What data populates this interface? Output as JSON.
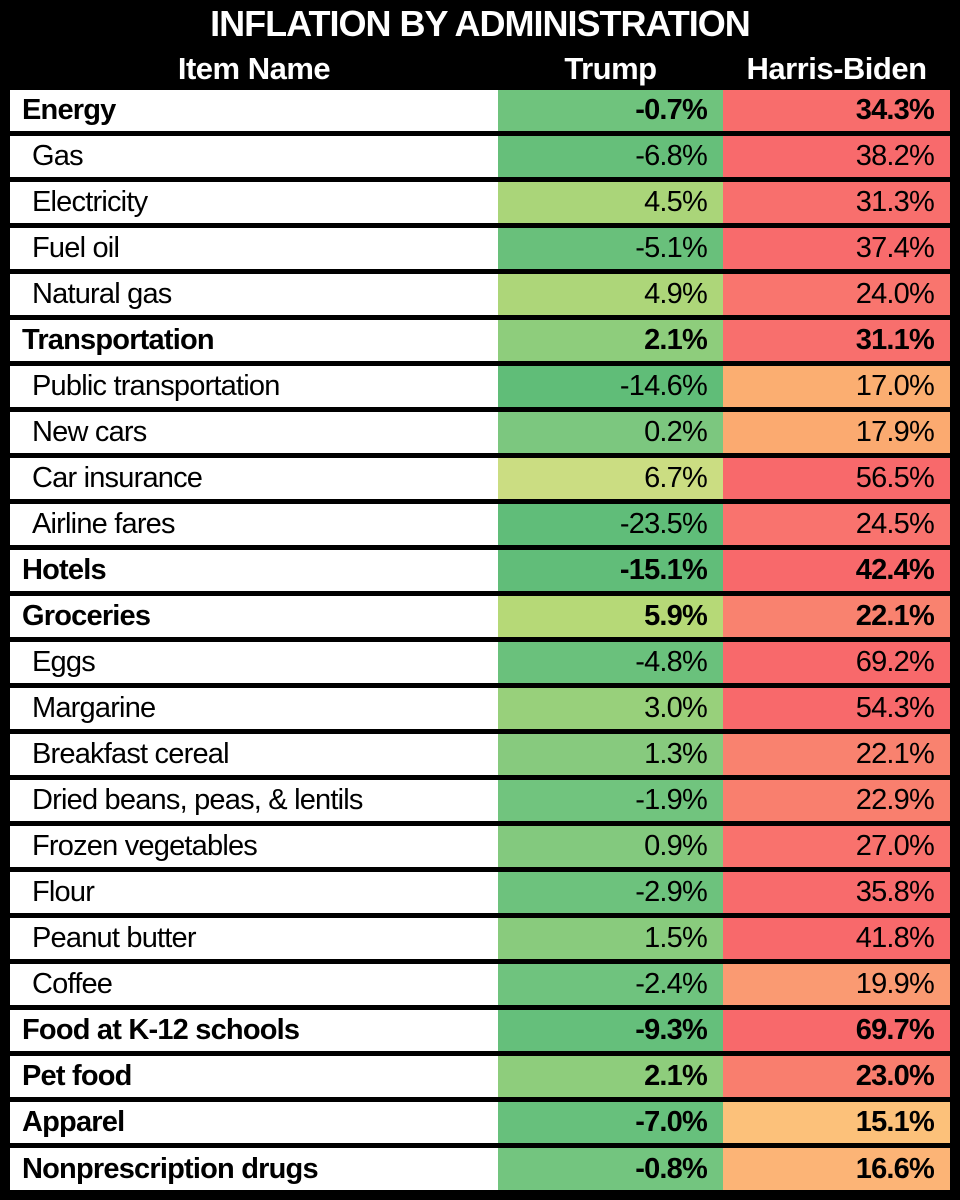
{
  "title": "INFLATION BY ADMINISTRATION",
  "columns": {
    "item": "Item Name",
    "trump": "Trump",
    "harris": "Harris-Biden"
  },
  "colors": {
    "frame": "#000000",
    "header_bg": "#000000",
    "header_text": "#ffffff",
    "row_bg": "#ffffff",
    "row_text": "#000000",
    "green_scale_low": "#63be7b",
    "green_scale_high": "#cbdd82",
    "red_scale_low": "#fcc17a",
    "red_scale_high": "#f8696b"
  },
  "rows": [
    {
      "item": "Energy",
      "bold": true,
      "trump": "-0.7%",
      "harris": "34.3%",
      "trump_color": "#6fc37d",
      "harris_color": "#f86d6c"
    },
    {
      "item": "Gas",
      "bold": false,
      "trump": "-6.8%",
      "harris": "38.2%",
      "trump_color": "#66bf7a",
      "harris_color": "#f86a6c"
    },
    {
      "item": "Electricity",
      "bold": false,
      "trump": "4.5%",
      "harris": "31.3%",
      "trump_color": "#aad579",
      "harris_color": "#f86f6d"
    },
    {
      "item": "Fuel oil",
      "bold": false,
      "trump": "-5.1%",
      "harris": "37.4%",
      "trump_color": "#69c07b",
      "harris_color": "#f86b6c"
    },
    {
      "item": "Natural gas",
      "bold": false,
      "trump": "4.9%",
      "harris": "24.0%",
      "trump_color": "#add679",
      "harris_color": "#f9756e"
    },
    {
      "item": "Transportation",
      "bold": true,
      "trump": "2.1%",
      "harris": "31.1%",
      "trump_color": "#8ecd7c",
      "harris_color": "#f86f6d"
    },
    {
      "item": "Public transportation",
      "bold": false,
      "trump": "-14.6%",
      "harris": "17.0%",
      "trump_color": "#60bd78",
      "harris_color": "#fbae71"
    },
    {
      "item": "New cars",
      "bold": false,
      "trump": "0.2%",
      "harris": "17.9%",
      "trump_color": "#7cc77f",
      "harris_color": "#fbaa70"
    },
    {
      "item": "Car insurance",
      "bold": false,
      "trump": "6.7%",
      "harris": "56.5%",
      "trump_color": "#cbdd82",
      "harris_color": "#f8696b"
    },
    {
      "item": "Airline fares",
      "bold": false,
      "trump": "-23.5%",
      "harris": "24.5%",
      "trump_color": "#60bd79",
      "harris_color": "#f9736e"
    },
    {
      "item": "Hotels",
      "bold": true,
      "trump": "-15.1%",
      "harris": "42.4%",
      "trump_color": "#61bd79",
      "harris_color": "#f8696b"
    },
    {
      "item": "Groceries",
      "bold": true,
      "trump": "5.9%",
      "harris": "22.1%",
      "trump_color": "#b6d977",
      "harris_color": "#f9826f"
    },
    {
      "item": "Eggs",
      "bold": false,
      "trump": "-4.8%",
      "harris": "69.2%",
      "trump_color": "#6ac17c",
      "harris_color": "#f8696b"
    },
    {
      "item": "Margarine",
      "bold": false,
      "trump": "3.0%",
      "harris": "54.3%",
      "trump_color": "#98d07b",
      "harris_color": "#f8696b"
    },
    {
      "item": "Breakfast cereal",
      "bold": false,
      "trump": "1.3%",
      "harris": "22.1%",
      "trump_color": "#87ca7e",
      "harris_color": "#f9826f"
    },
    {
      "item": "Dried beans, peas, & lentils",
      "bold": false,
      "trump": "-1.9%",
      "harris": "22.9%",
      "trump_color": "#71c47e",
      "harris_color": "#f97f6e"
    },
    {
      "item": "Frozen vegetables",
      "bold": false,
      "trump": "0.9%",
      "harris": "27.0%",
      "trump_color": "#83c97e",
      "harris_color": "#f9726d"
    },
    {
      "item": "Flour",
      "bold": false,
      "trump": "-2.9%",
      "harris": "35.8%",
      "trump_color": "#6dc27d",
      "harris_color": "#f86b6c"
    },
    {
      "item": "Peanut butter",
      "bold": false,
      "trump": "1.5%",
      "harris": "41.8%",
      "trump_color": "#89cb7d",
      "harris_color": "#f8696b"
    },
    {
      "item": "Coffee",
      "bold": false,
      "trump": "-2.4%",
      "harris": "19.9%",
      "trump_color": "#6fc37e",
      "harris_color": "#fa9a72"
    },
    {
      "item": "Food at K-12 schools",
      "bold": true,
      "trump": "-9.3%",
      "harris": "69.7%",
      "trump_color": "#65bf7b",
      "harris_color": "#f8696b"
    },
    {
      "item": "Pet food",
      "bold": true,
      "trump": "2.1%",
      "harris": "23.0%",
      "trump_color": "#8ecd7c",
      "harris_color": "#f97e6e"
    },
    {
      "item": "Apparel",
      "bold": true,
      "trump": "-7.0%",
      "harris": "15.1%",
      "trump_color": "#67c07c",
      "harris_color": "#fcc17a"
    },
    {
      "item": "Nonprescription drugs",
      "bold": true,
      "trump": "-0.8%",
      "harris": "16.6%",
      "trump_color": "#73c57f",
      "harris_color": "#fcb476"
    }
  ],
  "chart_data": {
    "type": "table",
    "title": "INFLATION BY ADMINISTRATION",
    "columns": [
      "Item Name",
      "Trump",
      "Harris-Biden"
    ],
    "category_rows": [
      "Energy",
      "Transportation",
      "Hotels",
      "Groceries",
      "Food at K-12 schools",
      "Pet food",
      "Apparel",
      "Nonprescription drugs"
    ],
    "rows": [
      [
        "Energy",
        -0.7,
        34.3
      ],
      [
        "Gas",
        -6.8,
        38.2
      ],
      [
        "Electricity",
        4.5,
        31.3
      ],
      [
        "Fuel oil",
        -5.1,
        37.4
      ],
      [
        "Natural gas",
        4.9,
        24.0
      ],
      [
        "Transportation",
        2.1,
        31.1
      ],
      [
        "Public transportation",
        -14.6,
        17.0
      ],
      [
        "New cars",
        0.2,
        17.9
      ],
      [
        "Car insurance",
        6.7,
        56.5
      ],
      [
        "Airline fares",
        -23.5,
        24.5
      ],
      [
        "Hotels",
        -15.1,
        42.4
      ],
      [
        "Groceries",
        5.9,
        22.1
      ],
      [
        "Eggs",
        -4.8,
        69.2
      ],
      [
        "Margarine",
        3.0,
        54.3
      ],
      [
        "Breakfast cereal",
        1.3,
        22.1
      ],
      [
        "Dried beans, peas, & lentils",
        -1.9,
        22.9
      ],
      [
        "Frozen vegetables",
        0.9,
        27.0
      ],
      [
        "Flour",
        -2.9,
        35.8
      ],
      [
        "Peanut butter",
        1.5,
        41.8
      ],
      [
        "Coffee",
        -2.4,
        19.9
      ],
      [
        "Food at K-12 schools",
        -9.3,
        69.7
      ],
      [
        "Pet food",
        2.1,
        23.0
      ],
      [
        "Apparel",
        -7.0,
        15.1
      ],
      [
        "Nonprescription drugs",
        -0.8,
        16.6
      ]
    ],
    "legend_position": "none",
    "notes": "Trump column shaded on a green-to-yellow scale (lower = greener); Harris-Biden column shaded orange-to-red scale (higher = redder)"
  }
}
